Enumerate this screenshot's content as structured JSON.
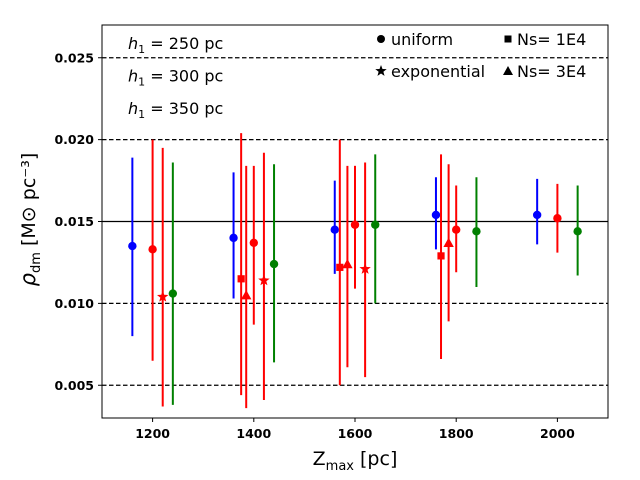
{
  "chart_data": {
    "type": "scatter",
    "xlabel_main": "Z",
    "xlabel_sub": "max",
    "xlabel_unit": " [pc]",
    "ylabel_main": "ρ",
    "ylabel_sub": "dm",
    "ylabel_unit": " [M⊙ pc⁻³]",
    "xlim": [
      1100,
      2100
    ],
    "ylim": [
      0.003,
      0.027
    ],
    "xticks": [
      1200,
      1400,
      1600,
      1800,
      2000
    ],
    "xtick_labels": [
      "1200",
      "1400",
      "1600",
      "1800",
      "2000"
    ],
    "yticks": [
      0.005,
      0.01,
      0.015,
      0.02,
      0.025
    ],
    "ytick_labels": [
      "0.005",
      "0.010",
      "0.015",
      "0.020",
      "0.025"
    ],
    "hlines": [
      {
        "y": 0.015,
        "style": "solid"
      },
      {
        "y": 0.005,
        "style": "dashed"
      },
      {
        "y": 0.01,
        "style": "dashed"
      },
      {
        "y": 0.02,
        "style": "dashed"
      },
      {
        "y": 0.025,
        "style": "dashed"
      }
    ],
    "groups": [
      {
        "label": "h",
        "sub": "1",
        "value": " = 250 pc",
        "color": "#0000ff"
      },
      {
        "label": "h",
        "sub": "1",
        "value": " = 300 pc",
        "color": "#ff0000"
      },
      {
        "label": "h",
        "sub": "1",
        "value": " = 350 pc",
        "color": "#008000"
      }
    ],
    "legend": [
      {
        "marker": "circle",
        "label": "uniform"
      },
      {
        "marker": "square",
        "label": "Ns= 1E4"
      },
      {
        "marker": "star",
        "label": "exponential"
      },
      {
        "marker": "triangle",
        "label": "Ns= 3E4"
      }
    ],
    "legend_placement": "top-right",
    "points": [
      {
        "x": 1160,
        "y": 0.0135,
        "ylo": 0.008,
        "yhi": 0.0189,
        "group": 0,
        "marker": "circle"
      },
      {
        "x": 1200,
        "y": 0.0133,
        "ylo": 0.0065,
        "yhi": 0.02,
        "group": 1,
        "marker": "circle"
      },
      {
        "x": 1220,
        "y": 0.0104,
        "ylo": 0.0037,
        "yhi": 0.0195,
        "group": 1,
        "marker": "star"
      },
      {
        "x": 1240,
        "y": 0.0106,
        "ylo": 0.0038,
        "yhi": 0.0186,
        "group": 2,
        "marker": "circle"
      },
      {
        "x": 1360,
        "y": 0.014,
        "ylo": 0.0103,
        "yhi": 0.018,
        "group": 0,
        "marker": "circle"
      },
      {
        "x": 1375,
        "y": 0.0115,
        "ylo": 0.0044,
        "yhi": 0.0204,
        "group": 1,
        "marker": "square"
      },
      {
        "x": 1385,
        "y": 0.0105,
        "ylo": 0.0036,
        "yhi": 0.0184,
        "group": 1,
        "marker": "triangle"
      },
      {
        "x": 1400,
        "y": 0.0137,
        "ylo": 0.0087,
        "yhi": 0.0184,
        "group": 1,
        "marker": "circle"
      },
      {
        "x": 1420,
        "y": 0.0114,
        "ylo": 0.0041,
        "yhi": 0.0192,
        "group": 1,
        "marker": "star"
      },
      {
        "x": 1440,
        "y": 0.0124,
        "ylo": 0.0064,
        "yhi": 0.0185,
        "group": 2,
        "marker": "circle"
      },
      {
        "x": 1560,
        "y": 0.0145,
        "ylo": 0.0118,
        "yhi": 0.0175,
        "group": 0,
        "marker": "circle"
      },
      {
        "x": 1570,
        "y": 0.0122,
        "ylo": 0.005,
        "yhi": 0.02,
        "group": 1,
        "marker": "square"
      },
      {
        "x": 1585,
        "y": 0.0124,
        "ylo": 0.0061,
        "yhi": 0.0184,
        "group": 1,
        "marker": "triangle"
      },
      {
        "x": 1600,
        "y": 0.0148,
        "ylo": 0.0109,
        "yhi": 0.0184,
        "group": 1,
        "marker": "circle"
      },
      {
        "x": 1620,
        "y": 0.0121,
        "ylo": 0.0055,
        "yhi": 0.0186,
        "group": 1,
        "marker": "star"
      },
      {
        "x": 1640,
        "y": 0.0148,
        "ylo": 0.01,
        "yhi": 0.0191,
        "group": 2,
        "marker": "circle"
      },
      {
        "x": 1760,
        "y": 0.0154,
        "ylo": 0.0133,
        "yhi": 0.0177,
        "group": 0,
        "marker": "circle"
      },
      {
        "x": 1770,
        "y": 0.0129,
        "ylo": 0.0066,
        "yhi": 0.0191,
        "group": 1,
        "marker": "square"
      },
      {
        "x": 1785,
        "y": 0.0137,
        "ylo": 0.0089,
        "yhi": 0.0185,
        "group": 1,
        "marker": "triangle"
      },
      {
        "x": 1800,
        "y": 0.0145,
        "ylo": 0.0119,
        "yhi": 0.0172,
        "group": 1,
        "marker": "circle"
      },
      {
        "x": 1840,
        "y": 0.0144,
        "ylo": 0.011,
        "yhi": 0.0177,
        "group": 2,
        "marker": "circle"
      },
      {
        "x": 1960,
        "y": 0.0154,
        "ylo": 0.0136,
        "yhi": 0.0176,
        "group": 0,
        "marker": "circle"
      },
      {
        "x": 2000,
        "y": 0.0152,
        "ylo": 0.0131,
        "yhi": 0.0173,
        "group": 1,
        "marker": "circle"
      },
      {
        "x": 2040,
        "y": 0.0144,
        "ylo": 0.0117,
        "yhi": 0.0172,
        "group": 2,
        "marker": "circle"
      }
    ]
  }
}
